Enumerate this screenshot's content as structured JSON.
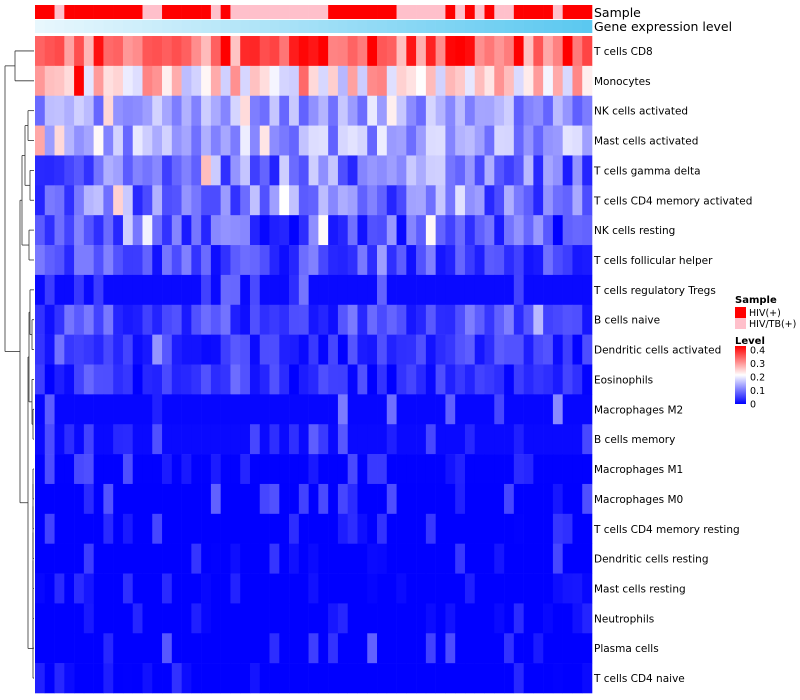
{
  "chart_data": {
    "type": "heatmap",
    "title": "",
    "column_annotation": {
      "label": "Sample",
      "groups": [
        "HIV(+)",
        "HIV/TB(+)"
      ],
      "colors": {
        "HIV(+)": "#ff0000",
        "HIV/TB(+)": "#ffc0cb"
      },
      "values": [
        0,
        0,
        1,
        0,
        0,
        0,
        0,
        0,
        0,
        0,
        0,
        1,
        1,
        0,
        0,
        0,
        0,
        0,
        1,
        0,
        1,
        1,
        1,
        1,
        1,
        1,
        1,
        1,
        1,
        1,
        0,
        0,
        0,
        0,
        0,
        0,
        0,
        1,
        1,
        1,
        1,
        1,
        0,
        1,
        0,
        1,
        0,
        1,
        1,
        0,
        0,
        0,
        0,
        1,
        0,
        0,
        0
      ]
    },
    "gradient_annotation": {
      "label": "Gene expression level",
      "color_start": "#e8f7fd",
      "color_end": "#5bc8f0"
    },
    "legend": {
      "sample_title": "Sample",
      "level_title": "Level",
      "ticks": [
        "0.4",
        "0.3",
        "0.2",
        "0.1",
        "0"
      ],
      "tick_values": [
        0.4,
        0.3,
        0.2,
        0.1,
        0
      ],
      "range": [
        0,
        0.43
      ],
      "colors": {
        "low": "#0000ff",
        "mid": "#ffffff",
        "high": "#ff0000"
      },
      "placement": "right"
    },
    "n_columns": 57,
    "rows": [
      {
        "name": "T cells CD8",
        "mean": 0.34,
        "variation": 0.09,
        "pattern": "noisy"
      },
      {
        "name": "Monocytes",
        "mean": 0.24,
        "variation": 0.09,
        "pattern": "noisy"
      },
      {
        "name": "NK cells activated",
        "mean": 0.13,
        "variation": 0.05,
        "pattern": "noisy"
      },
      {
        "name": "Mast cells activated",
        "mean": 0.14,
        "variation": 0.06,
        "pattern": "noisy"
      },
      {
        "name": "T cells gamma delta",
        "mean": 0.1,
        "variation": 0.08,
        "pattern": "noisy"
      },
      {
        "name": "T cells CD4 memory activated",
        "mean": 0.1,
        "variation": 0.07,
        "pattern": "noisy"
      },
      {
        "name": "NK cells resting",
        "mean": 0.06,
        "variation": 0.07,
        "pattern": "noisy"
      },
      {
        "name": "T cells follicular helper",
        "mean": 0.06,
        "variation": 0.05,
        "pattern": "noisy"
      },
      {
        "name": "T cells regulatory  Tregs",
        "mean": 0.02,
        "variation": 0.04,
        "pattern": "sparse"
      },
      {
        "name": "B cells naive",
        "mean": 0.06,
        "variation": 0.05,
        "pattern": "noisy"
      },
      {
        "name": "Dendritic cells activated",
        "mean": 0.04,
        "variation": 0.04,
        "pattern": "noisy"
      },
      {
        "name": "Eosinophils",
        "mean": 0.03,
        "variation": 0.04,
        "pattern": "noisy"
      },
      {
        "name": "Macrophages M2",
        "mean": 0.02,
        "variation": 0.05,
        "pattern": "sparse"
      },
      {
        "name": "B cells memory",
        "mean": 0.02,
        "variation": 0.04,
        "pattern": "sparse"
      },
      {
        "name": "Macrophages M1",
        "mean": 0.01,
        "variation": 0.03,
        "pattern": "sparse"
      },
      {
        "name": "Macrophages M0",
        "mean": 0.01,
        "variation": 0.04,
        "pattern": "sparse"
      },
      {
        "name": "T cells CD4 memory resting",
        "mean": 0.0,
        "variation": 0.03,
        "pattern": "sparse"
      },
      {
        "name": "Dendritic cells resting",
        "mean": 0.0,
        "variation": 0.03,
        "pattern": "sparse"
      },
      {
        "name": "Mast cells resting",
        "mean": 0.0,
        "variation": 0.02,
        "pattern": "sparse"
      },
      {
        "name": "Neutrophils",
        "mean": 0.0,
        "variation": 0.02,
        "pattern": "sparse"
      },
      {
        "name": "Plasma cells",
        "mean": 0.01,
        "variation": 0.04,
        "pattern": "sparse"
      },
      {
        "name": "T cells CD4 naive",
        "mean": 0.0,
        "variation": 0.03,
        "pattern": "sparse"
      }
    ],
    "row_dendrogram": true
  }
}
